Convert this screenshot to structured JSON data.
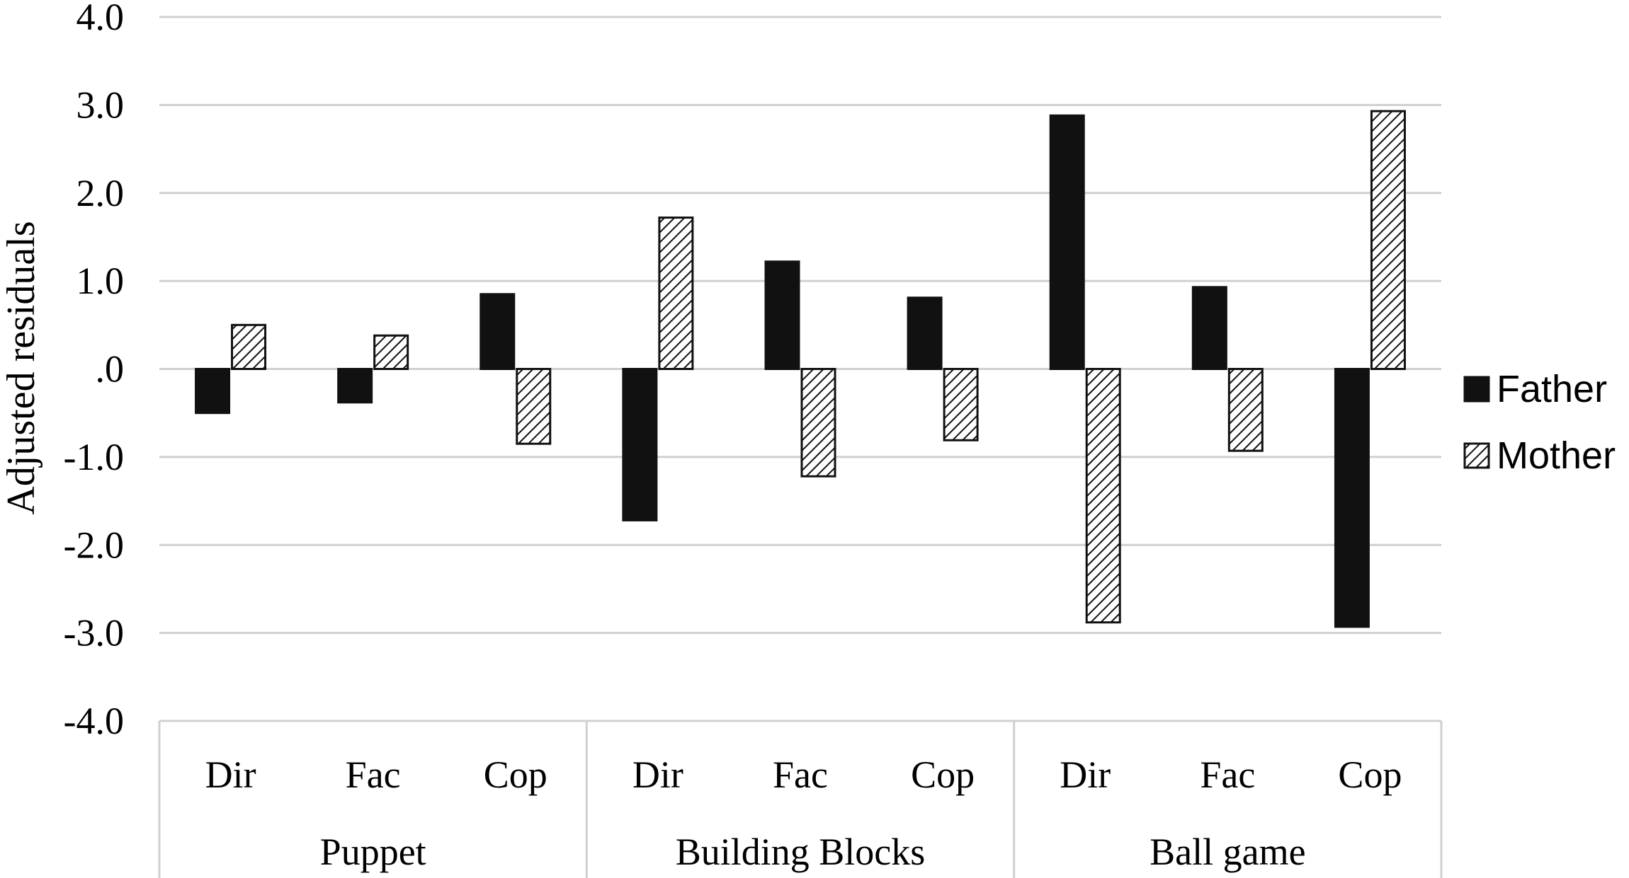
{
  "chart_data": {
    "type": "bar",
    "ylabel": "Adjusted residuals",
    "ylim": [
      -4,
      4
    ],
    "yticks": [
      "4.0",
      "3.0",
      "2.0",
      "1.0",
      ".0",
      "-1.0",
      "-2.0",
      "-3.0",
      "-4.0"
    ],
    "grid": true,
    "legend_position": "right",
    "groups": [
      "Puppet",
      "Building Blocks",
      "Ball game"
    ],
    "categories": [
      "Dir",
      "Fac",
      "Cop",
      "Dir",
      "Fac",
      "Cop",
      "Dir",
      "Fac",
      "Cop"
    ],
    "series": [
      {
        "name": "Father",
        "fill": "solid",
        "color": "#111111",
        "values": [
          -0.5,
          -0.38,
          0.85,
          -1.72,
          1.22,
          0.81,
          2.88,
          0.93,
          -2.93
        ]
      },
      {
        "name": "Mother",
        "fill": "hatched",
        "color": "#ffffff",
        "values": [
          0.5,
          0.38,
          -0.85,
          1.72,
          -1.22,
          -0.81,
          -2.88,
          -0.93,
          2.93
        ]
      }
    ]
  }
}
